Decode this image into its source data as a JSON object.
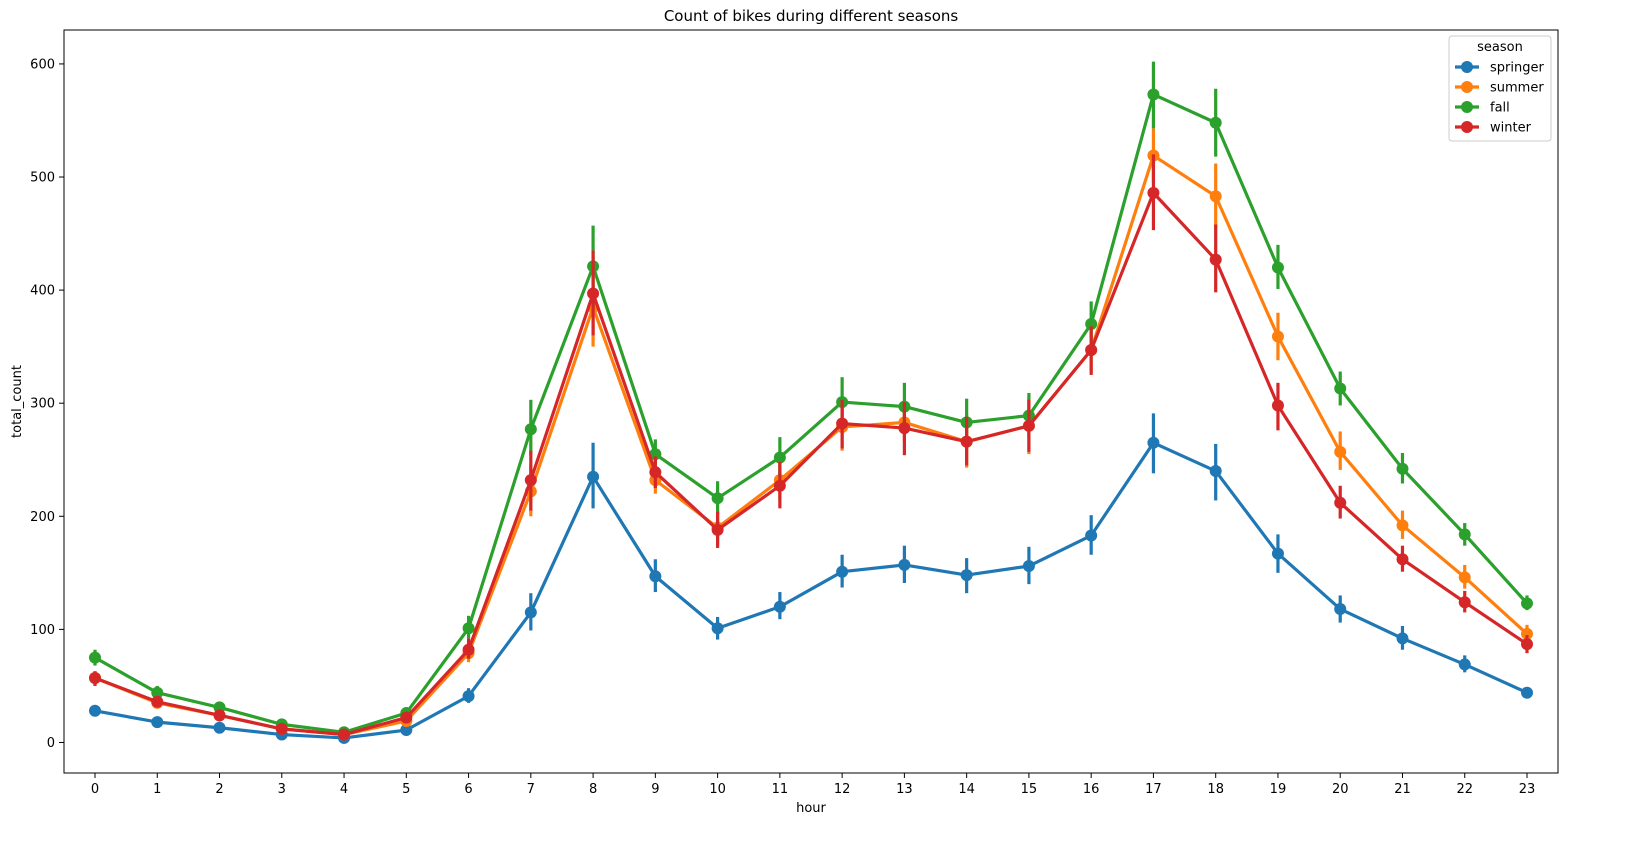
{
  "chart_data": {
    "type": "line",
    "title": "Count of bikes during different seasons",
    "xlabel": "hour",
    "ylabel": "total_count",
    "categories": [
      "0",
      "1",
      "2",
      "3",
      "4",
      "5",
      "6",
      "7",
      "8",
      "9",
      "10",
      "11",
      "12",
      "13",
      "14",
      "15",
      "16",
      "17",
      "18",
      "19",
      "20",
      "21",
      "22",
      "23"
    ],
    "ylim": [
      -27,
      630
    ],
    "yticks": [
      0,
      100,
      200,
      300,
      400,
      500,
      600
    ],
    "grid": false,
    "legend": {
      "title": "season",
      "position": "top-right"
    },
    "series": [
      {
        "name": "springer",
        "color": "#1f77b4",
        "values": [
          28,
          18,
          13,
          7,
          4,
          11,
          41,
          115,
          235,
          147,
          101,
          120,
          151,
          157,
          148,
          156,
          183,
          265,
          240,
          167,
          118,
          92,
          69,
          44
        ],
        "err": [
          [
            26,
            31
          ],
          [
            16,
            21
          ],
          [
            11,
            15
          ],
          [
            6,
            9
          ],
          [
            3,
            5
          ],
          [
            9,
            13
          ],
          [
            35,
            48
          ],
          [
            99,
            132
          ],
          [
            207,
            265
          ],
          [
            133,
            162
          ],
          [
            91,
            111
          ],
          [
            109,
            133
          ],
          [
            137,
            166
          ],
          [
            141,
            174
          ],
          [
            132,
            163
          ],
          [
            140,
            173
          ],
          [
            166,
            201
          ],
          [
            238,
            291
          ],
          [
            214,
            264
          ],
          [
            150,
            184
          ],
          [
            106,
            130
          ],
          [
            82,
            103
          ],
          [
            62,
            77
          ],
          [
            40,
            49
          ]
        ]
      },
      {
        "name": "summer",
        "color": "#ff7f0e",
        "values": [
          57,
          35,
          24,
          12,
          7,
          19,
          79,
          222,
          385,
          232,
          190,
          232,
          279,
          283,
          266,
          280,
          347,
          519,
          483,
          359,
          257,
          192,
          146,
          96
        ],
        "err": [
          [
            50,
            63
          ],
          [
            31,
            40
          ],
          [
            20,
            28
          ],
          [
            10,
            15
          ],
          [
            5,
            9
          ],
          [
            15,
            23
          ],
          [
            71,
            88
          ],
          [
            200,
            245
          ],
          [
            350,
            420
          ],
          [
            220,
            248
          ],
          [
            175,
            205
          ],
          [
            214,
            250
          ],
          [
            258,
            300
          ],
          [
            266,
            300
          ],
          [
            243,
            290
          ],
          [
            255,
            305
          ],
          [
            328,
            368
          ],
          [
            495,
            543
          ],
          [
            455,
            512
          ],
          [
            338,
            380
          ],
          [
            241,
            275
          ],
          [
            180,
            205
          ],
          [
            136,
            157
          ],
          [
            88,
            104
          ]
        ]
      },
      {
        "name": "fall",
        "color": "#2ca02c",
        "values": [
          75,
          44,
          31,
          16,
          9,
          26,
          101,
          277,
          421,
          255,
          216,
          252,
          301,
          297,
          283,
          289,
          370,
          573,
          548,
          420,
          313,
          242,
          184,
          123
        ],
        "err": [
          [
            68,
            82
          ],
          [
            39,
            50
          ],
          [
            26,
            36
          ],
          [
            13,
            20
          ],
          [
            7,
            11
          ],
          [
            22,
            31
          ],
          [
            92,
            112
          ],
          [
            254,
            303
          ],
          [
            384,
            457
          ],
          [
            244,
            268
          ],
          [
            202,
            231
          ],
          [
            235,
            270
          ],
          [
            282,
            323
          ],
          [
            277,
            318
          ],
          [
            262,
            304
          ],
          [
            270,
            309
          ],
          [
            352,
            390
          ],
          [
            543,
            602
          ],
          [
            518,
            578
          ],
          [
            401,
            440
          ],
          [
            298,
            328
          ],
          [
            229,
            256
          ],
          [
            174,
            194
          ],
          [
            117,
            130
          ]
        ]
      },
      {
        "name": "winter",
        "color": "#d62728",
        "values": [
          57,
          36,
          24,
          12,
          7,
          22,
          82,
          232,
          397,
          239,
          188,
          227,
          282,
          278,
          266,
          280,
          347,
          486,
          427,
          298,
          212,
          162,
          124,
          87
        ],
        "err": [
          [
            50,
            63
          ],
          [
            31,
            40
          ],
          [
            20,
            28
          ],
          [
            10,
            15
          ],
          [
            5,
            9
          ],
          [
            18,
            27
          ],
          [
            74,
            92
          ],
          [
            205,
            258
          ],
          [
            360,
            435
          ],
          [
            225,
            253
          ],
          [
            172,
            204
          ],
          [
            207,
            248
          ],
          [
            260,
            303
          ],
          [
            254,
            301
          ],
          [
            245,
            288
          ],
          [
            257,
            303
          ],
          [
            325,
            368
          ],
          [
            453,
            520
          ],
          [
            398,
            458
          ],
          [
            276,
            318
          ],
          [
            198,
            227
          ],
          [
            151,
            174
          ],
          [
            115,
            134
          ],
          [
            79,
            95
          ]
        ]
      }
    ]
  }
}
